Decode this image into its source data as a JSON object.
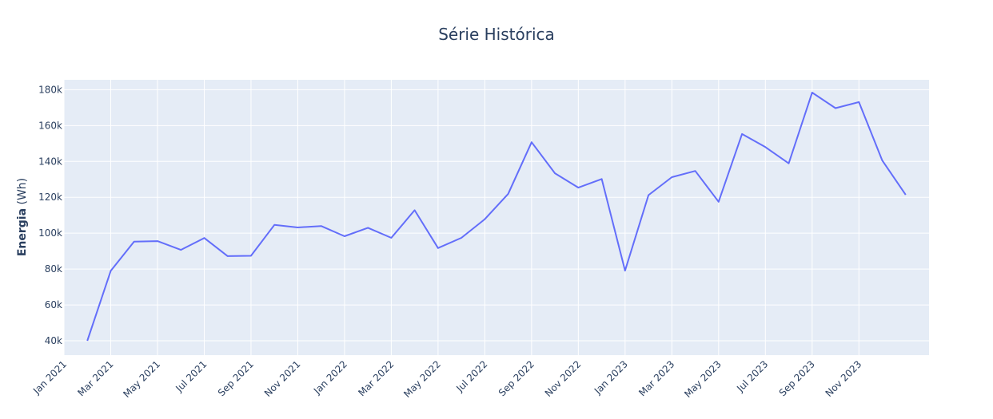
{
  "chart_data": {
    "type": "line",
    "title": "Série Histórica",
    "xlabel": "",
    "ylabel_bold": "Energia",
    "ylabel_rest": " (Wh)",
    "ylim": [
      32000,
      185500
    ],
    "xlim": [
      "2021-01",
      "2024-02"
    ],
    "grid": true,
    "legend": "none",
    "colors": {
      "line": "#636efa",
      "plot_bg": "#e5ecf6",
      "grid": "#ffffff",
      "text": "#2a3f5f"
    },
    "y_ticks": [
      {
        "value": 40000,
        "label": "40k"
      },
      {
        "value": 60000,
        "label": "60k"
      },
      {
        "value": 80000,
        "label": "80k"
      },
      {
        "value": 100000,
        "label": "100k"
      },
      {
        "value": 120000,
        "label": "120k"
      },
      {
        "value": 140000,
        "label": "140k"
      },
      {
        "value": 160000,
        "label": "160k"
      },
      {
        "value": 180000,
        "label": "180k"
      }
    ],
    "x_ticks": [
      {
        "value": "2021-01",
        "label": "Jan 2021"
      },
      {
        "value": "2021-03",
        "label": "Mar 2021"
      },
      {
        "value": "2021-05",
        "label": "May 2021"
      },
      {
        "value": "2021-07",
        "label": "Jul 2021"
      },
      {
        "value": "2021-09",
        "label": "Sep 2021"
      },
      {
        "value": "2021-11",
        "label": "Nov 2021"
      },
      {
        "value": "2022-01",
        "label": "Jan 2022"
      },
      {
        "value": "2022-03",
        "label": "Mar 2022"
      },
      {
        "value": "2022-05",
        "label": "May 2022"
      },
      {
        "value": "2022-07",
        "label": "Jul 2022"
      },
      {
        "value": "2022-09",
        "label": "Sep 2022"
      },
      {
        "value": "2022-11",
        "label": "Nov 2022"
      },
      {
        "value": "2023-01",
        "label": "Jan 2023"
      },
      {
        "value": "2023-03",
        "label": "Mar 2023"
      },
      {
        "value": "2023-05",
        "label": "May 2023"
      },
      {
        "value": "2023-07",
        "label": "Jul 2023"
      },
      {
        "value": "2023-09",
        "label": "Sep 2023"
      },
      {
        "value": "2023-11",
        "label": "Nov 2023"
      }
    ],
    "x": [
      "2021-02",
      "2021-03",
      "2021-04",
      "2021-05",
      "2021-06",
      "2021-07",
      "2021-08",
      "2021-09",
      "2021-10",
      "2021-11",
      "2021-12",
      "2022-01",
      "2022-02",
      "2022-03",
      "2022-04",
      "2022-05",
      "2022-06",
      "2022-07",
      "2022-08",
      "2022-09",
      "2022-10",
      "2022-11",
      "2022-12",
      "2023-01",
      "2023-02",
      "2023-03",
      "2023-04",
      "2023-05",
      "2023-06",
      "2023-07",
      "2023-08",
      "2023-09",
      "2023-10",
      "2023-11",
      "2023-12",
      "2024-01"
    ],
    "series": [
      {
        "values": [
          40000,
          79000,
          95300,
          95600,
          90700,
          97300,
          87200,
          87400,
          104600,
          103200,
          104000,
          98300,
          103000,
          97400,
          112800,
          91700,
          97400,
          107800,
          121900,
          150700,
          133400,
          125400,
          130200,
          79100,
          121200,
          131200,
          134700,
          117500,
          155300,
          148000,
          138900,
          178400,
          169700,
          173100,
          140500,
          121400
        ]
      }
    ]
  }
}
